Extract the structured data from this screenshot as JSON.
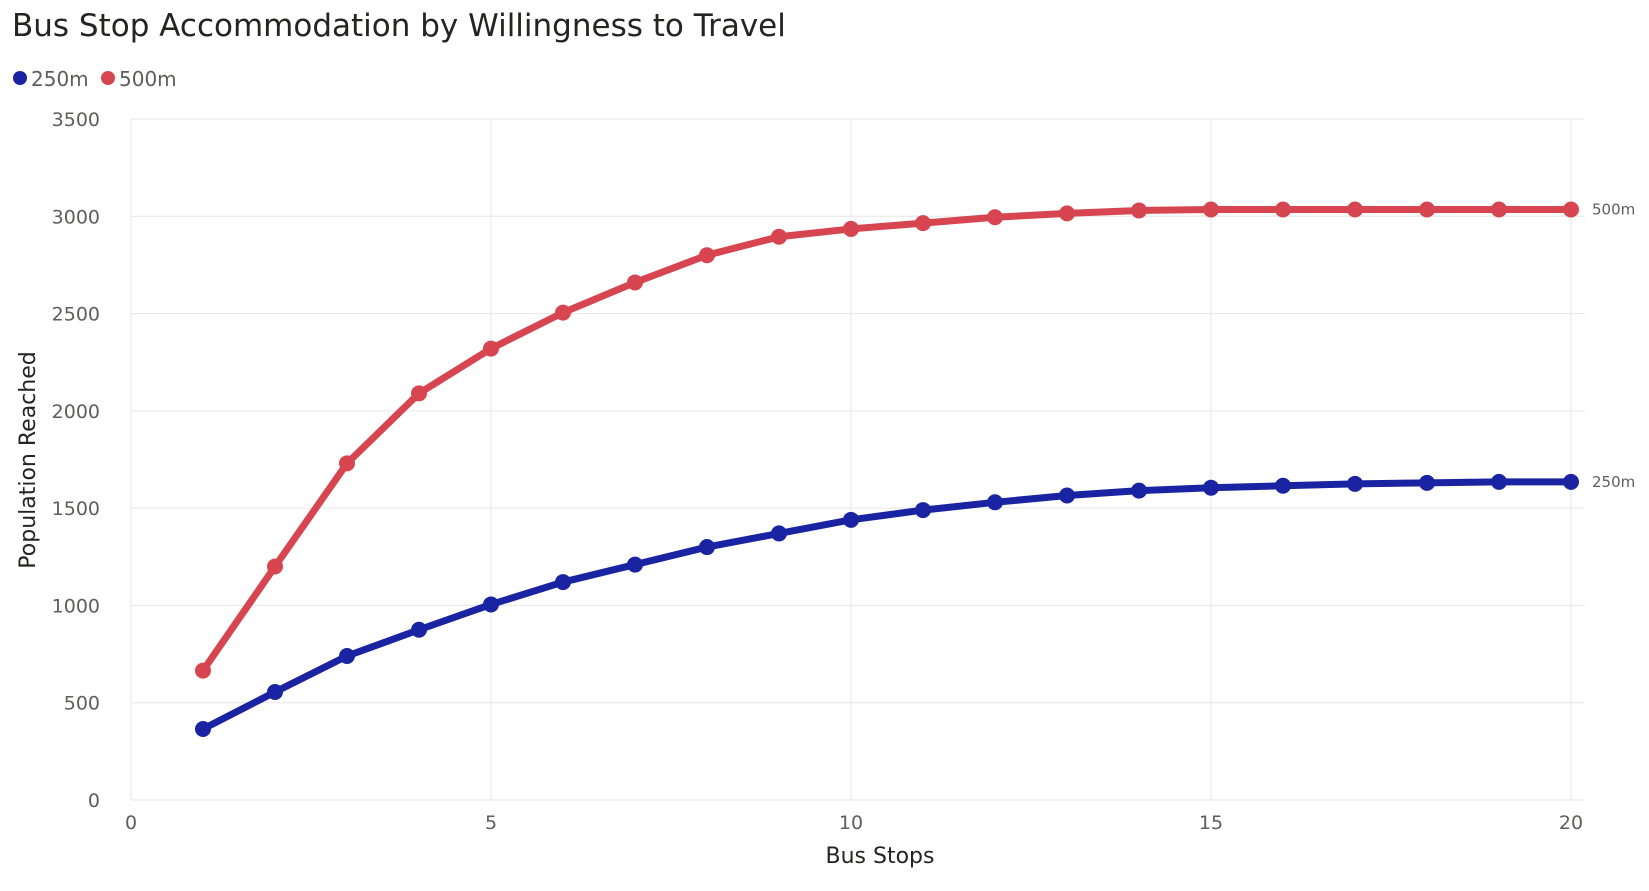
{
  "chart_data": {
    "type": "line",
    "title": "Bus Stop Accommodation by Willingness to Travel",
    "xlabel": "Bus Stops",
    "ylabel": "Population Reached",
    "xlim": [
      0,
      20
    ],
    "ylim": [
      0,
      3500
    ],
    "x_ticks": [
      "0",
      "5",
      "10",
      "15",
      "20"
    ],
    "y_ticks": [
      "0",
      "500",
      "1000",
      "1500",
      "2000",
      "2500",
      "3000",
      "3500"
    ],
    "grid": true,
    "legend_position": "top-left",
    "x": [
      1,
      2,
      3,
      4,
      5,
      6,
      7,
      8,
      9,
      10,
      11,
      12,
      13,
      14,
      15,
      16,
      17,
      18,
      19,
      20
    ],
    "series": [
      {
        "name": "250m",
        "color": "#1a24a3",
        "end_label": "250m",
        "values": [
          365,
          555,
          740,
          875,
          1005,
          1120,
          1210,
          1300,
          1370,
          1440,
          1490,
          1530,
          1565,
          1590,
          1605,
          1615,
          1625,
          1630,
          1635,
          1635
        ]
      },
      {
        "name": "500m",
        "color": "#d64550",
        "end_label": "500m",
        "values": [
          665,
          1200,
          1730,
          2090,
          2320,
          2505,
          2660,
          2800,
          2895,
          2935,
          2965,
          2995,
          3015,
          3030,
          3035,
          3035,
          3035,
          3035,
          3035,
          3035
        ]
      }
    ]
  }
}
